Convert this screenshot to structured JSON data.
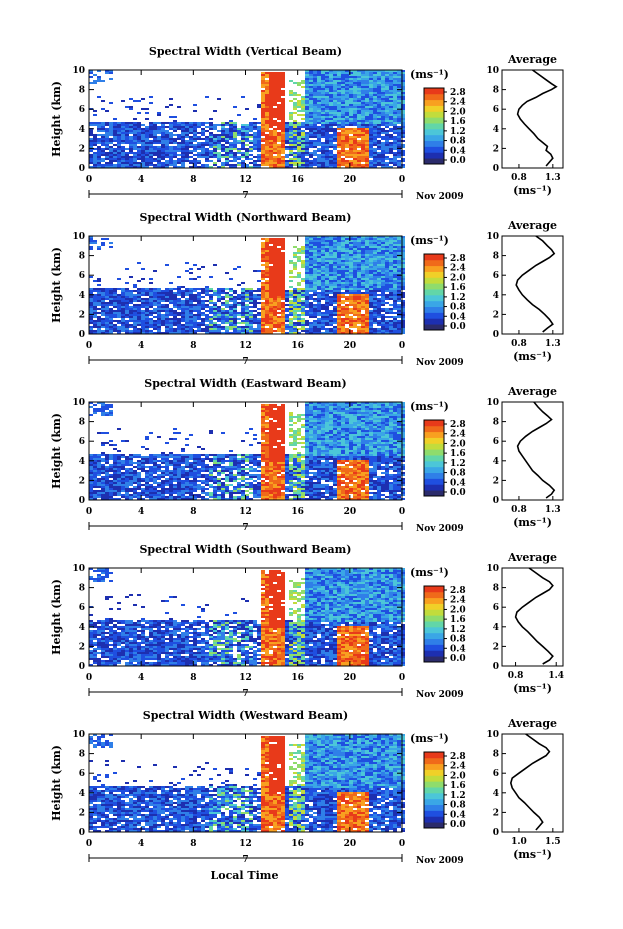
{
  "figure": {
    "xlabel": "Local Time",
    "date_label": "Nov 2009",
    "day_label": "7",
    "average_title": "Average",
    "unit_label": "(ms⁻¹)"
  },
  "colors": {
    "scale": [
      "#2b2b6b",
      "#1d2fb0",
      "#1f4fe0",
      "#2f7fe8",
      "#3aa6e6",
      "#4cc6d8",
      "#62d6a8",
      "#8fdc6c",
      "#c2dc3c",
      "#f0d028",
      "#f8a020",
      "#f06a1a",
      "#e83a1a"
    ]
  },
  "chart_data": [
    {
      "type": "heatmap",
      "title": "Spectral Width (Vertical Beam)",
      "ylabel": "Height (km)",
      "x_ticks": [
        "0",
        "4",
        "8",
        "12",
        "16",
        "20",
        "0"
      ],
      "y_ticks": [
        "0",
        "2",
        "4",
        "6",
        "8",
        "10"
      ],
      "xlim": [
        0,
        24
      ],
      "ylim": [
        0,
        10
      ],
      "colorbar_ticks": [
        "0.0",
        "0.4",
        "0.8",
        "1.2",
        "1.6",
        "2.0",
        "2.4",
        "2.8"
      ],
      "profile": {
        "type": "line",
        "x_ticks": [
          "0.8",
          "1.3"
        ],
        "xlim": [
          0.55,
          1.45
        ],
        "y_ticks": [
          "0",
          "2",
          "4",
          "6",
          "8",
          "10"
        ],
        "ylim": [
          0,
          10
        ],
        "xlabel": "(ms⁻¹)",
        "points": [
          [
            1.2,
            0.2
          ],
          [
            1.25,
            0.6
          ],
          [
            1.3,
            1.0
          ],
          [
            1.27,
            1.4
          ],
          [
            1.2,
            1.8
          ],
          [
            1.22,
            2.2
          ],
          [
            1.15,
            2.6
          ],
          [
            1.08,
            3.0
          ],
          [
            1.02,
            3.5
          ],
          [
            0.95,
            4.0
          ],
          [
            0.88,
            4.5
          ],
          [
            0.82,
            5.0
          ],
          [
            0.78,
            5.5
          ],
          [
            0.8,
            6.0
          ],
          [
            0.85,
            6.4
          ],
          [
            0.92,
            6.8
          ],
          [
            1.05,
            7.2
          ],
          [
            1.15,
            7.6
          ],
          [
            1.28,
            8.0
          ],
          [
            1.35,
            8.3
          ],
          [
            1.28,
            8.6
          ],
          [
            1.2,
            9.0
          ],
          [
            1.1,
            9.5
          ],
          [
            1.0,
            10.0
          ]
        ]
      }
    },
    {
      "type": "heatmap",
      "title": "Spectral Width (Northward Beam)",
      "ylabel": "Height (km)",
      "x_ticks": [
        "0",
        "4",
        "8",
        "12",
        "16",
        "20",
        "0"
      ],
      "y_ticks": [
        "0",
        "2",
        "4",
        "6",
        "8",
        "10"
      ],
      "xlim": [
        0,
        24
      ],
      "ylim": [
        0,
        10
      ],
      "colorbar_ticks": [
        "0.0",
        "0.4",
        "0.8",
        "1.2",
        "1.6",
        "2.0",
        "2.4",
        "2.8"
      ],
      "profile": {
        "type": "line",
        "x_ticks": [
          "0.8",
          "1.3"
        ],
        "xlim": [
          0.55,
          1.45
        ],
        "y_ticks": [
          "0",
          "2",
          "4",
          "6",
          "8",
          "10"
        ],
        "ylim": [
          0,
          10
        ],
        "xlabel": "(ms⁻¹)",
        "points": [
          [
            1.15,
            0.2
          ],
          [
            1.22,
            0.6
          ],
          [
            1.3,
            1.0
          ],
          [
            1.25,
            1.5
          ],
          [
            1.18,
            2.0
          ],
          [
            1.1,
            2.5
          ],
          [
            1.0,
            3.0
          ],
          [
            0.92,
            3.5
          ],
          [
            0.85,
            4.0
          ],
          [
            0.8,
            4.5
          ],
          [
            0.76,
            5.0
          ],
          [
            0.78,
            5.5
          ],
          [
            0.85,
            6.0
          ],
          [
            0.95,
            6.5
          ],
          [
            1.05,
            7.0
          ],
          [
            1.15,
            7.4
          ],
          [
            1.25,
            7.8
          ],
          [
            1.32,
            8.2
          ],
          [
            1.28,
            8.6
          ],
          [
            1.22,
            9.0
          ],
          [
            1.15,
            9.5
          ],
          [
            1.05,
            10.0
          ]
        ]
      }
    },
    {
      "type": "heatmap",
      "title": "Spectral Width (Eastward Beam)",
      "ylabel": "Height (km)",
      "x_ticks": [
        "0",
        "4",
        "8",
        "12",
        "16",
        "20",
        "0"
      ],
      "y_ticks": [
        "0",
        "2",
        "4",
        "6",
        "8",
        "10"
      ],
      "xlim": [
        0,
        24
      ],
      "ylim": [
        0,
        10
      ],
      "colorbar_ticks": [
        "0.0",
        "0.4",
        "0.8",
        "1.2",
        "1.6",
        "2.0",
        "2.4",
        "2.8"
      ],
      "profile": {
        "type": "line",
        "x_ticks": [
          "0.8",
          "1.3"
        ],
        "xlim": [
          0.55,
          1.45
        ],
        "y_ticks": [
          "0",
          "2",
          "4",
          "6",
          "8",
          "10"
        ],
        "ylim": [
          0,
          10
        ],
        "xlabel": "(ms⁻¹)",
        "points": [
          [
            1.2,
            0.2
          ],
          [
            1.28,
            0.6
          ],
          [
            1.32,
            1.0
          ],
          [
            1.25,
            1.5
          ],
          [
            1.15,
            2.0
          ],
          [
            1.08,
            2.5
          ],
          [
            1.0,
            3.0
          ],
          [
            0.95,
            3.5
          ],
          [
            0.9,
            4.0
          ],
          [
            0.85,
            4.5
          ],
          [
            0.8,
            5.0
          ],
          [
            0.78,
            5.5
          ],
          [
            0.82,
            6.0
          ],
          [
            0.9,
            6.5
          ],
          [
            1.0,
            7.0
          ],
          [
            1.1,
            7.4
          ],
          [
            1.2,
            7.8
          ],
          [
            1.28,
            8.2
          ],
          [
            1.22,
            8.6
          ],
          [
            1.15,
            9.0
          ],
          [
            1.08,
            9.5
          ],
          [
            1.02,
            10.0
          ]
        ]
      }
    },
    {
      "type": "heatmap",
      "title": "Spectral Width (Southward Beam)",
      "ylabel": "Height (km)",
      "x_ticks": [
        "0",
        "4",
        "8",
        "12",
        "16",
        "20",
        "0"
      ],
      "y_ticks": [
        "0",
        "2",
        "4",
        "6",
        "8",
        "10"
      ],
      "xlim": [
        0,
        24
      ],
      "ylim": [
        0,
        10
      ],
      "colorbar_ticks": [
        "0.0",
        "0.4",
        "0.8",
        "1.2",
        "1.6",
        "2.0",
        "2.4",
        "2.8"
      ],
      "profile": {
        "type": "line",
        "x_ticks": [
          "0.8",
          "1.4"
        ],
        "xlim": [
          0.6,
          1.5
        ],
        "y_ticks": [
          "0",
          "2",
          "4",
          "6",
          "8",
          "10"
        ],
        "ylim": [
          0,
          10
        ],
        "xlabel": "(ms⁻¹)",
        "points": [
          [
            1.2,
            0.2
          ],
          [
            1.3,
            0.6
          ],
          [
            1.35,
            1.0
          ],
          [
            1.28,
            1.5
          ],
          [
            1.2,
            2.0
          ],
          [
            1.12,
            2.5
          ],
          [
            1.05,
            3.0
          ],
          [
            0.98,
            3.5
          ],
          [
            0.9,
            4.0
          ],
          [
            0.84,
            4.5
          ],
          [
            0.8,
            5.0
          ],
          [
            0.82,
            5.5
          ],
          [
            0.9,
            6.0
          ],
          [
            1.0,
            6.5
          ],
          [
            1.1,
            7.0
          ],
          [
            1.2,
            7.4
          ],
          [
            1.3,
            7.8
          ],
          [
            1.35,
            8.2
          ],
          [
            1.3,
            8.6
          ],
          [
            1.2,
            9.0
          ],
          [
            1.1,
            9.5
          ],
          [
            1.0,
            10.0
          ]
        ]
      }
    },
    {
      "type": "heatmap",
      "title": "Spectral Width (Westward Beam)",
      "ylabel": "Height (km)",
      "x_ticks": [
        "0",
        "4",
        "8",
        "12",
        "16",
        "20",
        "0"
      ],
      "y_ticks": [
        "0",
        "2",
        "4",
        "6",
        "8",
        "10"
      ],
      "xlim": [
        0,
        24
      ],
      "ylim": [
        0,
        10
      ],
      "colorbar_ticks": [
        "0.0",
        "0.4",
        "0.8",
        "1.2",
        "1.6",
        "2.0",
        "2.4",
        "2.8"
      ],
      "profile": {
        "type": "line",
        "x_ticks": [
          "1.0",
          "1.5"
        ],
        "xlim": [
          0.75,
          1.65
        ],
        "y_ticks": [
          "0",
          "2",
          "4",
          "6",
          "8",
          "10"
        ],
        "ylim": [
          0,
          10
        ],
        "xlabel": "(ms⁻¹)",
        "points": [
          [
            1.25,
            0.2
          ],
          [
            1.3,
            0.6
          ],
          [
            1.35,
            1.0
          ],
          [
            1.3,
            1.5
          ],
          [
            1.22,
            2.0
          ],
          [
            1.15,
            2.5
          ],
          [
            1.08,
            3.0
          ],
          [
            1.0,
            3.5
          ],
          [
            0.95,
            4.0
          ],
          [
            0.9,
            4.5
          ],
          [
            0.88,
            5.0
          ],
          [
            0.9,
            5.5
          ],
          [
            1.0,
            6.0
          ],
          [
            1.1,
            6.5
          ],
          [
            1.2,
            7.0
          ],
          [
            1.3,
            7.4
          ],
          [
            1.4,
            7.8
          ],
          [
            1.45,
            8.2
          ],
          [
            1.4,
            8.6
          ],
          [
            1.3,
            9.0
          ],
          [
            1.2,
            9.5
          ],
          [
            1.1,
            10.0
          ]
        ]
      }
    }
  ]
}
